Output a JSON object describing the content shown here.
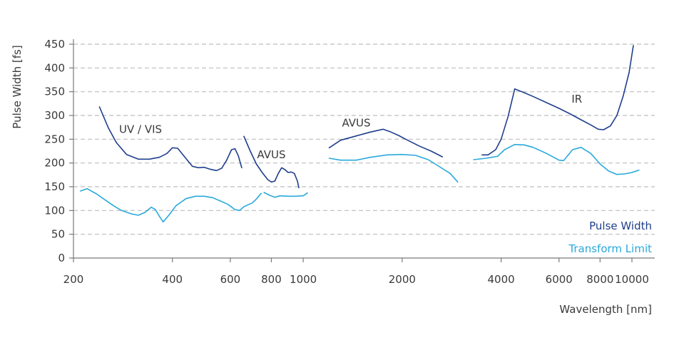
{
  "chart_data": {
    "type": "line",
    "xlabel": "Wavelength [nm]",
    "ylabel": "Pulse Width [fs]",
    "x_scale": "log",
    "xlim": [
      200,
      11500
    ],
    "ylim": [
      0,
      450
    ],
    "x_ticks": [
      200,
      400,
      600,
      800,
      1000,
      2000,
      4000,
      6000,
      8000,
      10000
    ],
    "x_tick_labels": [
      "200",
      "400",
      "600",
      "800",
      "1000",
      "2000",
      "4000",
      "6000",
      "8000",
      "10000"
    ],
    "y_ticks": [
      0,
      50,
      100,
      150,
      200,
      250,
      300,
      350,
      400,
      450
    ],
    "y_tick_labels": [
      "0",
      "50",
      "100",
      "150",
      "200",
      "250",
      "300",
      "350",
      "400",
      "450"
    ],
    "grid": "horizontal dashed",
    "legend_position": "bottom-right",
    "colors": {
      "pulse_width": "#1f3e8c",
      "transform_limit": "#2aa9db",
      "grid": "#bdbdbd",
      "axis": "#7a7a7a"
    },
    "annotations": [
      {
        "text": "UV / VIS",
        "x": 320,
        "y": 263
      },
      {
        "text": "AVUS",
        "x": 800,
        "y": 210
      },
      {
        "text": "AVUS",
        "x": 1450,
        "y": 277
      },
      {
        "text": "IR",
        "x": 6800,
        "y": 327
      }
    ],
    "series": [
      {
        "name": "Pulse Width",
        "color": "#1f3e8c",
        "segments": [
          [
            [
              240,
              318
            ],
            [
              255,
              275
            ],
            [
              270,
              243
            ],
            [
              290,
              218
            ],
            [
              315,
              208
            ],
            [
              340,
              208
            ],
            [
              365,
              212
            ],
            [
              385,
              220
            ],
            [
              400,
              232
            ],
            [
              415,
              231
            ],
            [
              430,
              218
            ],
            [
              445,
              205
            ],
            [
              460,
              193
            ],
            [
              480,
              190
            ],
            [
              500,
              191
            ],
            [
              520,
              187
            ],
            [
              545,
              184
            ],
            [
              565,
              189
            ],
            [
              585,
              206
            ],
            [
              605,
              228
            ],
            [
              620,
              230
            ],
            [
              635,
              215
            ],
            [
              650,
              190
            ]
          ],
          [
            [
              660,
              256
            ],
            [
              690,
              225
            ],
            [
              720,
              198
            ],
            [
              750,
              180
            ],
            [
              780,
              165
            ],
            [
              800,
              160
            ],
            [
              820,
              162
            ],
            [
              840,
              178
            ],
            [
              860,
              190
            ],
            [
              880,
              186
            ],
            [
              900,
              180
            ],
            [
              920,
              181
            ],
            [
              940,
              178
            ],
            [
              960,
              162
            ],
            [
              970,
              148
            ]
          ],
          [
            [
              1200,
              232
            ],
            [
              1300,
              248
            ],
            [
              1450,
              257
            ],
            [
              1600,
              265
            ],
            [
              1750,
              271
            ],
            [
              1850,
              265
            ],
            [
              1950,
              258
            ],
            [
              2050,
              250
            ],
            [
              2250,
              236
            ],
            [
              2450,
              225
            ],
            [
              2650,
              213
            ]
          ],
          [
            [
              3500,
              217
            ],
            [
              3650,
              217
            ],
            [
              3850,
              228
            ],
            [
              4000,
              250
            ],
            [
              4200,
              298
            ],
            [
              4400,
              356
            ],
            [
              4700,
              348
            ],
            [
              5000,
              340
            ],
            [
              5500,
              327
            ],
            [
              6000,
              315
            ],
            [
              6500,
              303
            ],
            [
              7000,
              291
            ],
            [
              7500,
              280
            ],
            [
              7900,
              271
            ],
            [
              8200,
              270
            ],
            [
              8600,
              278
            ],
            [
              9000,
              300
            ],
            [
              9400,
              340
            ],
            [
              9800,
              390
            ],
            [
              10100,
              447
            ]
          ]
        ]
      },
      {
        "name": "Transform Limit",
        "color": "#2aa9db",
        "segments": [
          [
            [
              210,
              141
            ],
            [
              220,
              146
            ],
            [
              235,
              135
            ],
            [
              250,
              122
            ],
            [
              265,
              110
            ],
            [
              280,
              100
            ],
            [
              300,
              93
            ],
            [
              315,
              90
            ],
            [
              330,
              96
            ],
            [
              345,
              107
            ],
            [
              355,
              102
            ],
            [
              365,
              88
            ],
            [
              375,
              76
            ],
            [
              390,
              90
            ],
            [
              410,
              110
            ],
            [
              440,
              125
            ],
            [
              470,
              130
            ],
            [
              500,
              130
            ],
            [
              530,
              127
            ],
            [
              560,
              120
            ],
            [
              590,
              113
            ],
            [
              620,
              102
            ],
            [
              640,
              100
            ],
            [
              660,
              108
            ],
            [
              680,
              112
            ],
            [
              700,
              116
            ],
            [
              720,
              124
            ],
            [
              745,
              136
            ]
          ],
          [
            [
              760,
              138
            ],
            [
              790,
              132
            ],
            [
              820,
              128
            ],
            [
              850,
              131
            ],
            [
              900,
              130
            ],
            [
              950,
              130
            ],
            [
              1000,
              131
            ],
            [
              1030,
              137
            ]
          ],
          [
            [
              1200,
              210
            ],
            [
              1300,
              206
            ],
            [
              1450,
              206
            ],
            [
              1600,
              212
            ],
            [
              1800,
              217
            ],
            [
              2000,
              218
            ],
            [
              2200,
              216
            ],
            [
              2400,
              207
            ],
            [
              2600,
              192
            ],
            [
              2800,
              178
            ],
            [
              2950,
              160
            ]
          ],
          [
            [
              3300,
              207
            ],
            [
              3600,
              210
            ],
            [
              3900,
              214
            ],
            [
              4100,
              228
            ],
            [
              4400,
              239
            ],
            [
              4700,
              238
            ],
            [
              5000,
              233
            ],
            [
              5500,
              220
            ],
            [
              6000,
              206
            ],
            [
              6200,
              205
            ],
            [
              6600,
              228
            ],
            [
              7000,
              233
            ],
            [
              7500,
              220
            ],
            [
              8000,
              198
            ],
            [
              8500,
              183
            ],
            [
              9000,
              176
            ],
            [
              9500,
              177
            ],
            [
              10000,
              180
            ],
            [
              10500,
              185
            ]
          ]
        ]
      }
    ]
  }
}
